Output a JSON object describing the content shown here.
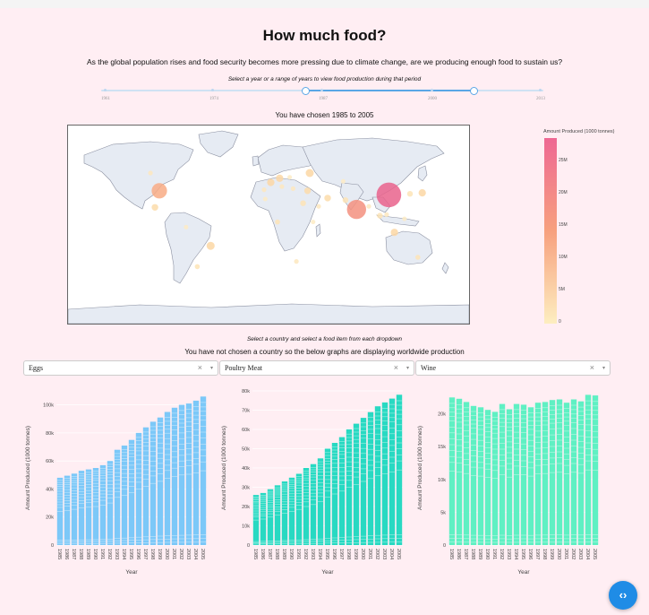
{
  "header": {
    "title": "How much food?",
    "subtitle": "As the global population rises and food security becomes more pressing due to climate change, are we producing enough food to sustain us?"
  },
  "slider": {
    "hint": "Select a year or a range of years to view food production during that period",
    "marks": [
      "1961",
      "1974",
      "1987",
      "2000",
      "2013"
    ],
    "range_start": 1985,
    "range_end": 2005,
    "min": 1961,
    "max": 2013
  },
  "selection_text": "You have chosen 1985 to 2005",
  "map": {
    "colorbar_title": "Amount Produced (1000 tonnes)",
    "colorbar_ticks": [
      "25M",
      "20M",
      "15M",
      "10M",
      "5M",
      "0"
    ],
    "bubbles": [
      {
        "lon": 108,
        "lat": 35,
        "value": 28,
        "color": "#e9638c"
      },
      {
        "lon": 79,
        "lat": 21,
        "value": 17,
        "color": "#f3907f"
      },
      {
        "lon": -98,
        "lat": 39,
        "value": 11,
        "color": "#f8ac85"
      },
      {
        "lon": -52,
        "lat": -14,
        "value": 3,
        "color": "#fbd7a4"
      },
      {
        "lon": 37,
        "lat": 56,
        "value": 3,
        "color": "#fbd7a4"
      },
      {
        "lon": 10,
        "lat": 51,
        "value": 2.5,
        "color": "#fbd7a4"
      },
      {
        "lon": 2,
        "lat": 47,
        "value": 2.5,
        "color": "#fbd7a4"
      },
      {
        "lon": 138,
        "lat": 37,
        "value": 2.5,
        "color": "#fbd7a4"
      },
      {
        "lon": 113,
        "lat": -1,
        "value": 2.5,
        "color": "#fbd7a4"
      },
      {
        "lon": 53,
        "lat": 32,
        "value": 2,
        "color": "#fcdcaa"
      },
      {
        "lon": 35,
        "lat": 39,
        "value": 2,
        "color": "#fcdcaa"
      },
      {
        "lon": -102,
        "lat": 23,
        "value": 2,
        "color": "#fcdcaa"
      },
      {
        "lon": 31,
        "lat": 27,
        "value": 1.5,
        "color": "#fde4b6"
      },
      {
        "lon": 100,
        "lat": 15,
        "value": 1.5,
        "color": "#fde4b6"
      },
      {
        "lon": 127,
        "lat": 36,
        "value": 1.5,
        "color": "#fde4b6"
      },
      {
        "lon": 69,
        "lat": 30,
        "value": 1.5,
        "color": "#fde4b6"
      },
      {
        "lon": 8,
        "lat": 9,
        "value": 1.2,
        "color": "#fde4b6"
      },
      {
        "lon": -64,
        "lat": -34,
        "value": 1.2,
        "color": "#fde4b6"
      },
      {
        "lon": 134,
        "lat": -25,
        "value": 1.2,
        "color": "#fde4b6"
      },
      {
        "lon": 22,
        "lat": 41,
        "value": 1,
        "color": "#fde8be"
      },
      {
        "lon": 106,
        "lat": 16,
        "value": 1,
        "color": "#fde8be"
      },
      {
        "lon": 90,
        "lat": 24,
        "value": 1,
        "color": "#fde8be"
      },
      {
        "lon": 45,
        "lat": 24,
        "value": 1,
        "color": "#fde8be"
      },
      {
        "lon": 25,
        "lat": -29,
        "value": 1,
        "color": "#fde8be"
      },
      {
        "lon": -4,
        "lat": 40,
        "value": 1,
        "color": "#fde8be"
      },
      {
        "lon": 12,
        "lat": 43,
        "value": 1,
        "color": "#fde8be"
      },
      {
        "lon": -106,
        "lat": 56,
        "value": 1,
        "color": "#fde8be"
      },
      {
        "lon": 40,
        "lat": 9,
        "value": 0.8,
        "color": "#fdebc4"
      },
      {
        "lon": 122,
        "lat": 12,
        "value": 0.8,
        "color": "#fdebc4"
      },
      {
        "lon": -74,
        "lat": 4,
        "value": 0.8,
        "color": "#fdebc4"
      },
      {
        "lon": 19,
        "lat": 52,
        "value": 0.8,
        "color": "#fdebc4"
      },
      {
        "lon": 67,
        "lat": 48,
        "value": 0.8,
        "color": "#fdebc4"
      },
      {
        "lon": -3,
        "lat": 31,
        "value": 0.6,
        "color": "#fdebc4"
      }
    ]
  },
  "dropdown_section": {
    "hint": "Select a country and select a food item from each dropdown",
    "message": "You have not chosen a country so the below graphs are displaying worldwide production",
    "dropdowns": [
      {
        "value": "Eggs"
      },
      {
        "value": "Poultry Meat"
      },
      {
        "value": "Wine"
      }
    ],
    "clear_glyph": "×",
    "caret_glyph": "▾"
  },
  "chart_data": [
    {
      "type": "bar",
      "stacked": true,
      "title": "",
      "xlabel": "Year",
      "ylabel": "Amount Produced (1000 tonnes)",
      "categories": [
        "1985",
        "1986",
        "1987",
        "1988",
        "1989",
        "1990",
        "1991",
        "1992",
        "1993",
        "1994",
        "1995",
        "1996",
        "1997",
        "1998",
        "1999",
        "2000",
        "2001",
        "2002",
        "2003",
        "2004",
        "2005"
      ],
      "totals": [
        48000,
        49500,
        51000,
        53000,
        54000,
        55000,
        57000,
        60000,
        68000,
        71000,
        75000,
        80000,
        84000,
        88000,
        91000,
        95000,
        98000,
        100000,
        101000,
        103000,
        106000
      ],
      "yticks": [
        0,
        20000,
        40000,
        60000,
        80000,
        100000
      ],
      "ytick_labels": [
        "0",
        "20k",
        "40k",
        "60k",
        "80k",
        "100k"
      ],
      "ylim": [
        0,
        110000
      ],
      "color": "#7cc8f8",
      "legend": "none"
    },
    {
      "type": "bar",
      "stacked": true,
      "title": "",
      "xlabel": "Year",
      "ylabel": "Amount Produced (1000 tonnes)",
      "categories": [
        "1985",
        "1986",
        "1987",
        "1988",
        "1989",
        "1990",
        "1991",
        "1992",
        "1993",
        "1994",
        "1995",
        "1996",
        "1997",
        "1998",
        "1999",
        "2000",
        "2001",
        "2002",
        "2003",
        "2004",
        "2005"
      ],
      "totals": [
        26000,
        27000,
        29000,
        31000,
        33000,
        35000,
        37000,
        40000,
        42000,
        45000,
        50000,
        53000,
        56000,
        60000,
        63000,
        66000,
        69000,
        72000,
        74000,
        76000,
        78000
      ],
      "yticks": [
        0,
        10000,
        20000,
        30000,
        40000,
        50000,
        60000,
        70000,
        80000
      ],
      "ytick_labels": [
        "0",
        "10k",
        "20k",
        "30k",
        "40k",
        "50k",
        "60k",
        "70k",
        "80k"
      ],
      "ylim": [
        0,
        80000
      ],
      "color": "#28d9c2",
      "legend": "none"
    },
    {
      "type": "bar",
      "stacked": true,
      "title": "",
      "xlabel": "Year",
      "ylabel": "Amount Produced (1000 tonnes)",
      "categories": [
        "1985",
        "1986",
        "1987",
        "1988",
        "1989",
        "1990",
        "1991",
        "1992",
        "1993",
        "1994",
        "1995",
        "1996",
        "1997",
        "1998",
        "1999",
        "2000",
        "2001",
        "2002",
        "2003",
        "2004",
        "2005"
      ],
      "totals": [
        22500,
        22300,
        21800,
        21200,
        21000,
        20600,
        20300,
        21500,
        20700,
        21500,
        21400,
        21000,
        21700,
        21800,
        22100,
        22200,
        21700,
        22200,
        21900,
        22900,
        22800
      ],
      "yticks": [
        0,
        5000,
        10000,
        15000,
        20000
      ],
      "ytick_labels": [
        "0",
        "5k",
        "10k",
        "15k",
        "20k"
      ],
      "ylim": [
        0,
        23500
      ],
      "color": "#5ff0c3",
      "legend": "none"
    }
  ]
}
